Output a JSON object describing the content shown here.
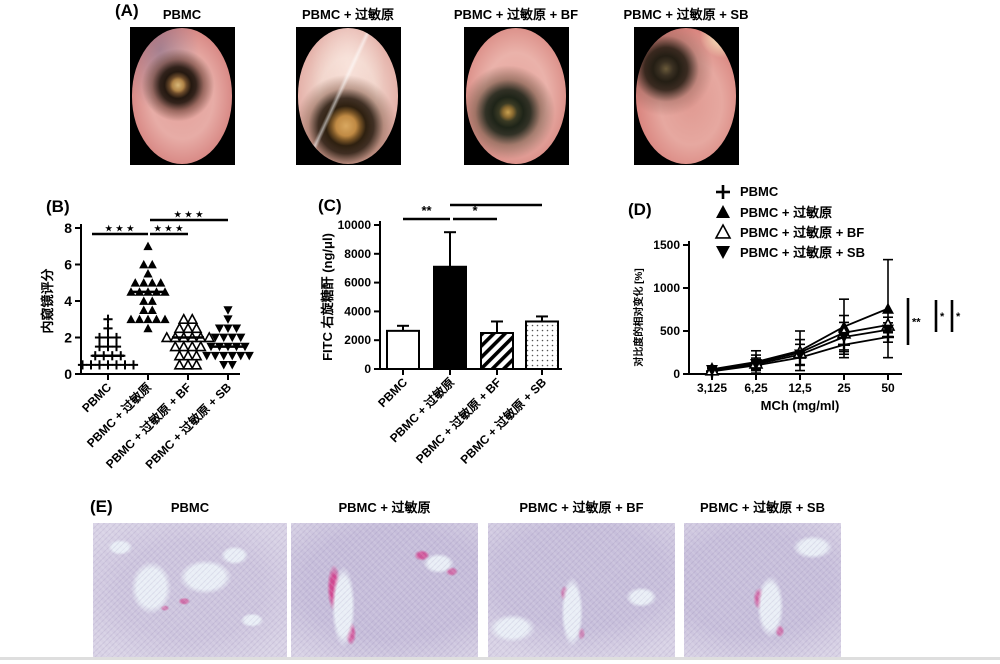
{
  "figure": {
    "panel_a": {
      "tag": "(A)",
      "items": [
        {
          "label": "PBMC"
        },
        {
          "label": "PBMC + 过敏原"
        },
        {
          "label": "PBMC + 过敏原 + BF"
        },
        {
          "label": "PBMC + 过敏原 + SB"
        }
      ]
    },
    "panel_b": {
      "tag": "(B)"
    },
    "panel_c": {
      "tag": "(C)"
    },
    "panel_d": {
      "tag": "(D)"
    },
    "panel_e": {
      "tag": "(E)",
      "items": [
        {
          "label": "PBMC"
        },
        {
          "label": "PBMC + 过敏原"
        },
        {
          "label": "PBMC + 过敏原 + BF"
        },
        {
          "label": "PBMC + 过敏原 + SB"
        }
      ]
    }
  },
  "chart_data": [
    {
      "id": "B",
      "type": "scatter",
      "ylabel": "内窥镜评分",
      "ylim": [
        0,
        8
      ],
      "yticks": [
        0,
        2,
        4,
        6,
        8
      ],
      "categories": [
        "PBMC",
        "PBMC + 过敏原",
        "PBMC + 过敏原 + BF",
        "PBMC + 过敏原 + SB"
      ],
      "markers": [
        "plus",
        "triangle-filled",
        "triangle-open",
        "triangle-down-filled"
      ],
      "groups": [
        {
          "name": "PBMC",
          "median": 1,
          "points": [
            3,
            2.5,
            2,
            2,
            2,
            1.5,
            1.5,
            1.5,
            1,
            1,
            1,
            1,
            0.5,
            0.5,
            0.5,
            0.5,
            0.5,
            0.5,
            0.5
          ]
        },
        {
          "name": "PBMC + 过敏原",
          "median": 4.5,
          "points": [
            7,
            6,
            6,
            5.5,
            5,
            5,
            5,
            5,
            4.5,
            4.5,
            4.5,
            4.5,
            4.5,
            4,
            4,
            3.5,
            3.5,
            3,
            3,
            3,
            3,
            3,
            2.5
          ]
        },
        {
          "name": "PBMC + 过敏原 + BF",
          "median": 2,
          "points": [
            3,
            3,
            2.5,
            2.5,
            2.5,
            2,
            2,
            2,
            2,
            2,
            2,
            1.5,
            1.5,
            1.5,
            1.5,
            1,
            1,
            1,
            0.5,
            0.5,
            0.5
          ]
        },
        {
          "name": "PBMC + 过敏原 + SB",
          "median": 1.5,
          "points": [
            3.5,
            3,
            2.5,
            2.5,
            2.5,
            2,
            2,
            2,
            2,
            1.5,
            1.5,
            1.5,
            1.5,
            1.5,
            1,
            1,
            1,
            1,
            1,
            1,
            0.5,
            0.5
          ]
        }
      ],
      "significance": [
        {
          "from": 0,
          "to": 1,
          "label": "***"
        },
        {
          "from": 1,
          "to": 2,
          "label": "***"
        },
        {
          "from": 1,
          "to": 3,
          "label": "***"
        }
      ]
    },
    {
      "id": "C",
      "type": "bar",
      "ylabel": "FITC 右旋糖酐 (ng/μl)",
      "ylim": [
        0,
        10000
      ],
      "yticks": [
        0,
        2000,
        4000,
        6000,
        8000,
        10000
      ],
      "categories": [
        "PBMC",
        "PBMC + 过敏原",
        "PBMC + 过敏原 + BF",
        "PBMC + 过敏原 + SB"
      ],
      "values": [
        2650,
        7100,
        2500,
        3300
      ],
      "errors": [
        350,
        2400,
        800,
        350
      ],
      "bar_styles": [
        "white",
        "black",
        "hatch",
        "dots"
      ],
      "significance": [
        {
          "from": 0,
          "to": 1,
          "label": "**"
        },
        {
          "from": 1,
          "to": 2,
          "label": "*"
        },
        {
          "from": 1,
          "to": 3,
          "label": "*"
        }
      ]
    },
    {
      "id": "D",
      "type": "line",
      "xlabel": "MCh (mg/ml)",
      "ylabel": "对比度的相对变化 [%]",
      "ylim": [
        0,
        1500
      ],
      "yticks": [
        0,
        500,
        1000,
        1500
      ],
      "x_categories": [
        "3,125",
        "6,25",
        "12,5",
        "25",
        "50"
      ],
      "series": [
        {
          "name": "PBMC",
          "marker": "plus",
          "values": [
            30,
            100,
            190,
            340,
            430
          ],
          "errors": [
            15,
            40,
            80,
            150,
            60
          ]
        },
        {
          "name": "PBMC + 过敏原",
          "marker": "triangle-filled",
          "values": [
            55,
            140,
            270,
            550,
            760
          ],
          "errors": [
            25,
            130,
            230,
            320,
            570
          ]
        },
        {
          "name": "PBMC + 过敏原 + BF",
          "marker": "triangle-open",
          "values": [
            50,
            130,
            250,
            480,
            570
          ],
          "errors": [
            20,
            90,
            150,
            200,
            90
          ]
        },
        {
          "name": "PBMC + 过敏原 + SB",
          "marker": "triangle-down-filled",
          "values": [
            45,
            115,
            225,
            430,
            515
          ],
          "errors": [
            20,
            70,
            120,
            170,
            80
          ]
        }
      ],
      "significance_right": [
        "**",
        "*",
        "*"
      ]
    }
  ],
  "colors": {
    "ink": "#000000",
    "background": "#ffffff",
    "histology_base": "#d8d2e5",
    "histology_stain": "#d62c80"
  }
}
